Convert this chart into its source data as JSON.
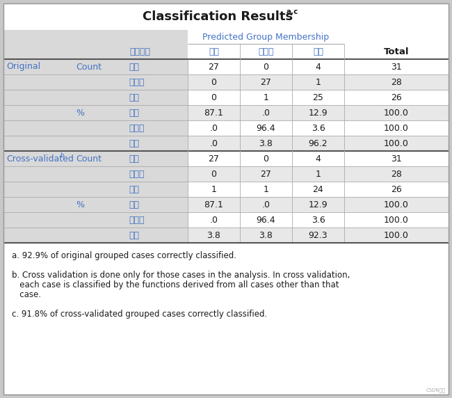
{
  "title": "Classification Results",
  "title_super": "a,c",
  "predicted_label": "Predicted Group Membership",
  "col_header_labels": [
    "录取结果",
    "录取",
    "不录取",
    "待定",
    "Total"
  ],
  "rows": [
    {
      "group": "Original",
      "sub": "Count",
      "cat": "录取",
      "v1": "27",
      "v2": "0",
      "v3": "4",
      "v4": "31"
    },
    {
      "group": "",
      "sub": "",
      "cat": "不录取",
      "v1": "0",
      "v2": "27",
      "v3": "1",
      "v4": "28"
    },
    {
      "group": "",
      "sub": "",
      "cat": "待定",
      "v1": "0",
      "v2": "1",
      "v3": "25",
      "v4": "26"
    },
    {
      "group": "",
      "sub": "%",
      "cat": "录取",
      "v1": "87.1",
      "v2": ".0",
      "v3": "12.9",
      "v4": "100.0"
    },
    {
      "group": "",
      "sub": "",
      "cat": "不录取",
      "v1": ".0",
      "v2": "96.4",
      "v3": "3.6",
      "v4": "100.0"
    },
    {
      "group": "",
      "sub": "",
      "cat": "待定",
      "v1": ".0",
      "v2": "3.8",
      "v3": "96.2",
      "v4": "100.0"
    },
    {
      "group": "Cross-validated",
      "sub": "Count",
      "cat": "录取",
      "v1": "27",
      "v2": "0",
      "v3": "4",
      "v4": "31"
    },
    {
      "group": "",
      "sub": "",
      "cat": "不录取",
      "v1": "0",
      "v2": "27",
      "v3": "1",
      "v4": "28"
    },
    {
      "group": "",
      "sub": "",
      "cat": "待定",
      "v1": "1",
      "v2": "1",
      "v3": "24",
      "v4": "26"
    },
    {
      "group": "",
      "sub": "%",
      "cat": "录取",
      "v1": "87.1",
      "v2": ".0",
      "v3": "12.9",
      "v4": "100.0"
    },
    {
      "group": "",
      "sub": "",
      "cat": "不录取",
      "v1": ".0",
      "v2": "96.4",
      "v3": "3.6",
      "v4": "100.0"
    },
    {
      "group": "",
      "sub": "",
      "cat": "待定",
      "v1": "3.8",
      "v2": "3.8",
      "v3": "92.3",
      "v4": "100.0"
    }
  ],
  "footnote_a": "a. 92.9% of original grouped cases correctly classified.",
  "footnote_b1": "b. Cross validation is done only for those cases in the analysis. In cross validation,",
  "footnote_b2": "   each case is classified by the functions derived from all cases other than that",
  "footnote_b3": "   case.",
  "footnote_c": "c. 91.8% of cross-validated grouped cases correctly classified.",
  "watermark": "CSDN博客",
  "outer_bg": "#c8c8c8",
  "inner_bg": "#ffffff",
  "gray_bg": "#d9d9d9",
  "alt_row_bg": "#e8e8e8",
  "blue_text": "#4472C4",
  "black_text": "#1a1a1a",
  "line_dark": "#555555",
  "line_light": "#aaaaaa"
}
